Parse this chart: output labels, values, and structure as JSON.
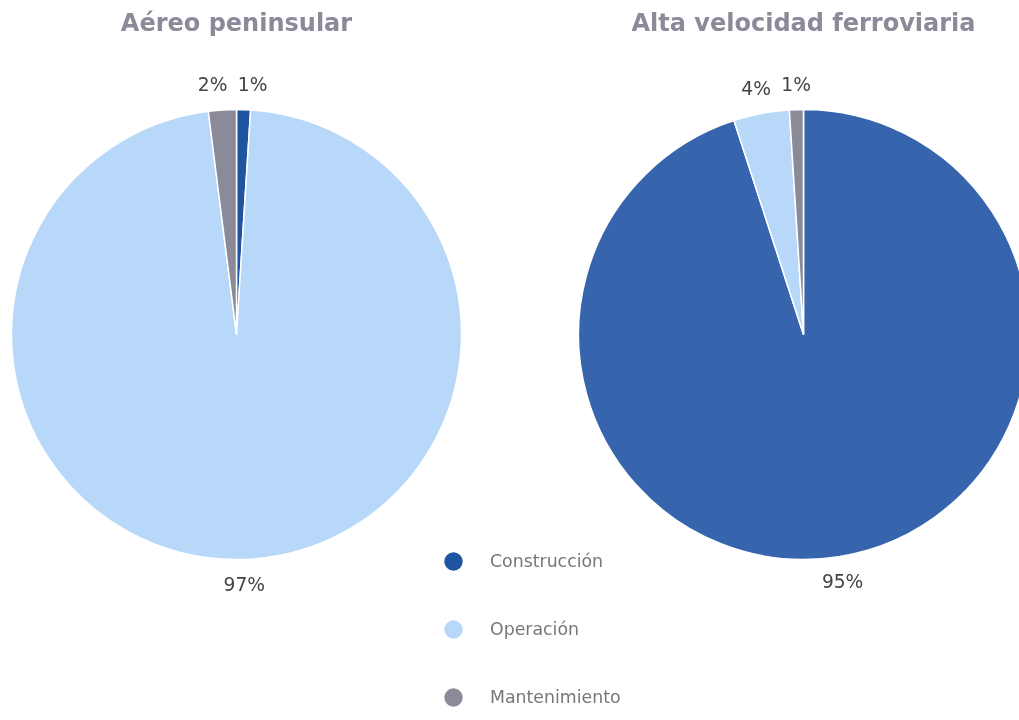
{
  "chart_data": [
    {
      "type": "pie",
      "title": "Aéreo peninsular",
      "categories": [
        "Construcción",
        "Operación",
        "Mantenimiento"
      ],
      "values": [
        1,
        97,
        2
      ],
      "value_labels": [
        "1%",
        "97%",
        "2%"
      ],
      "colors": [
        "#1f55a0",
        "#b8d8fa",
        "#8a8a99"
      ],
      "legend": "bottom"
    },
    {
      "type": "pie",
      "title": "Alta velocidad ferroviaria",
      "values": [
        95,
        4,
        1
      ],
      "value_labels": [
        "95%",
        "4%",
        "1%"
      ],
      "colors": [
        "#3665ad",
        "#b8d8fa",
        "#8a8a99"
      ]
    }
  ]
}
